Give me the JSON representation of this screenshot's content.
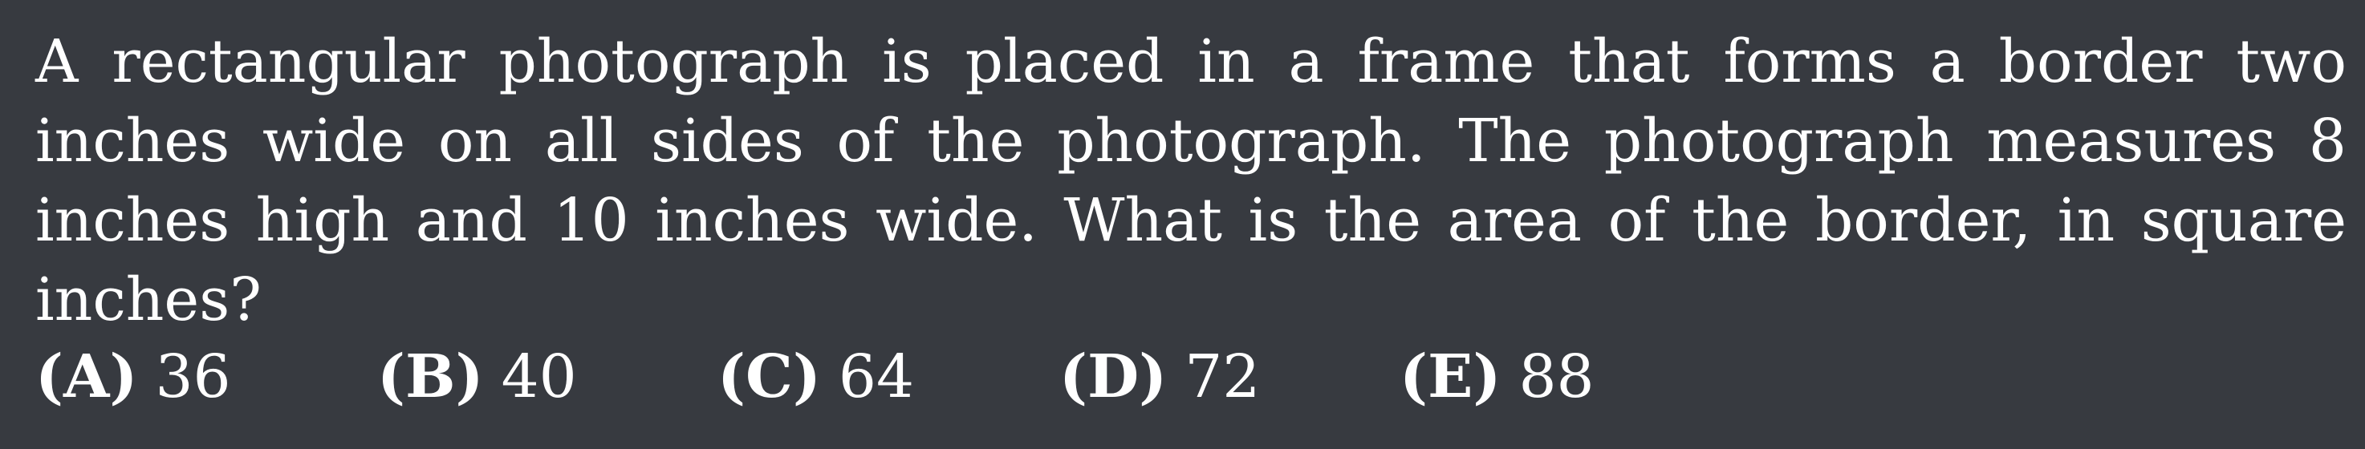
{
  "question": {
    "text": "A rectangular photograph is placed in a frame that forms a border two inches wide on all sides of the photograph. The photograph measures 8 inches high and 10 inches wide. What is the area of the border, in square inches?"
  },
  "choices": [
    {
      "label": "(A)",
      "value": "36"
    },
    {
      "label": "(B)",
      "value": "40"
    },
    {
      "label": "(C)",
      "value": "64"
    },
    {
      "label": "(D)",
      "value": "72"
    },
    {
      "label": "(E)",
      "value": "88"
    }
  ]
}
